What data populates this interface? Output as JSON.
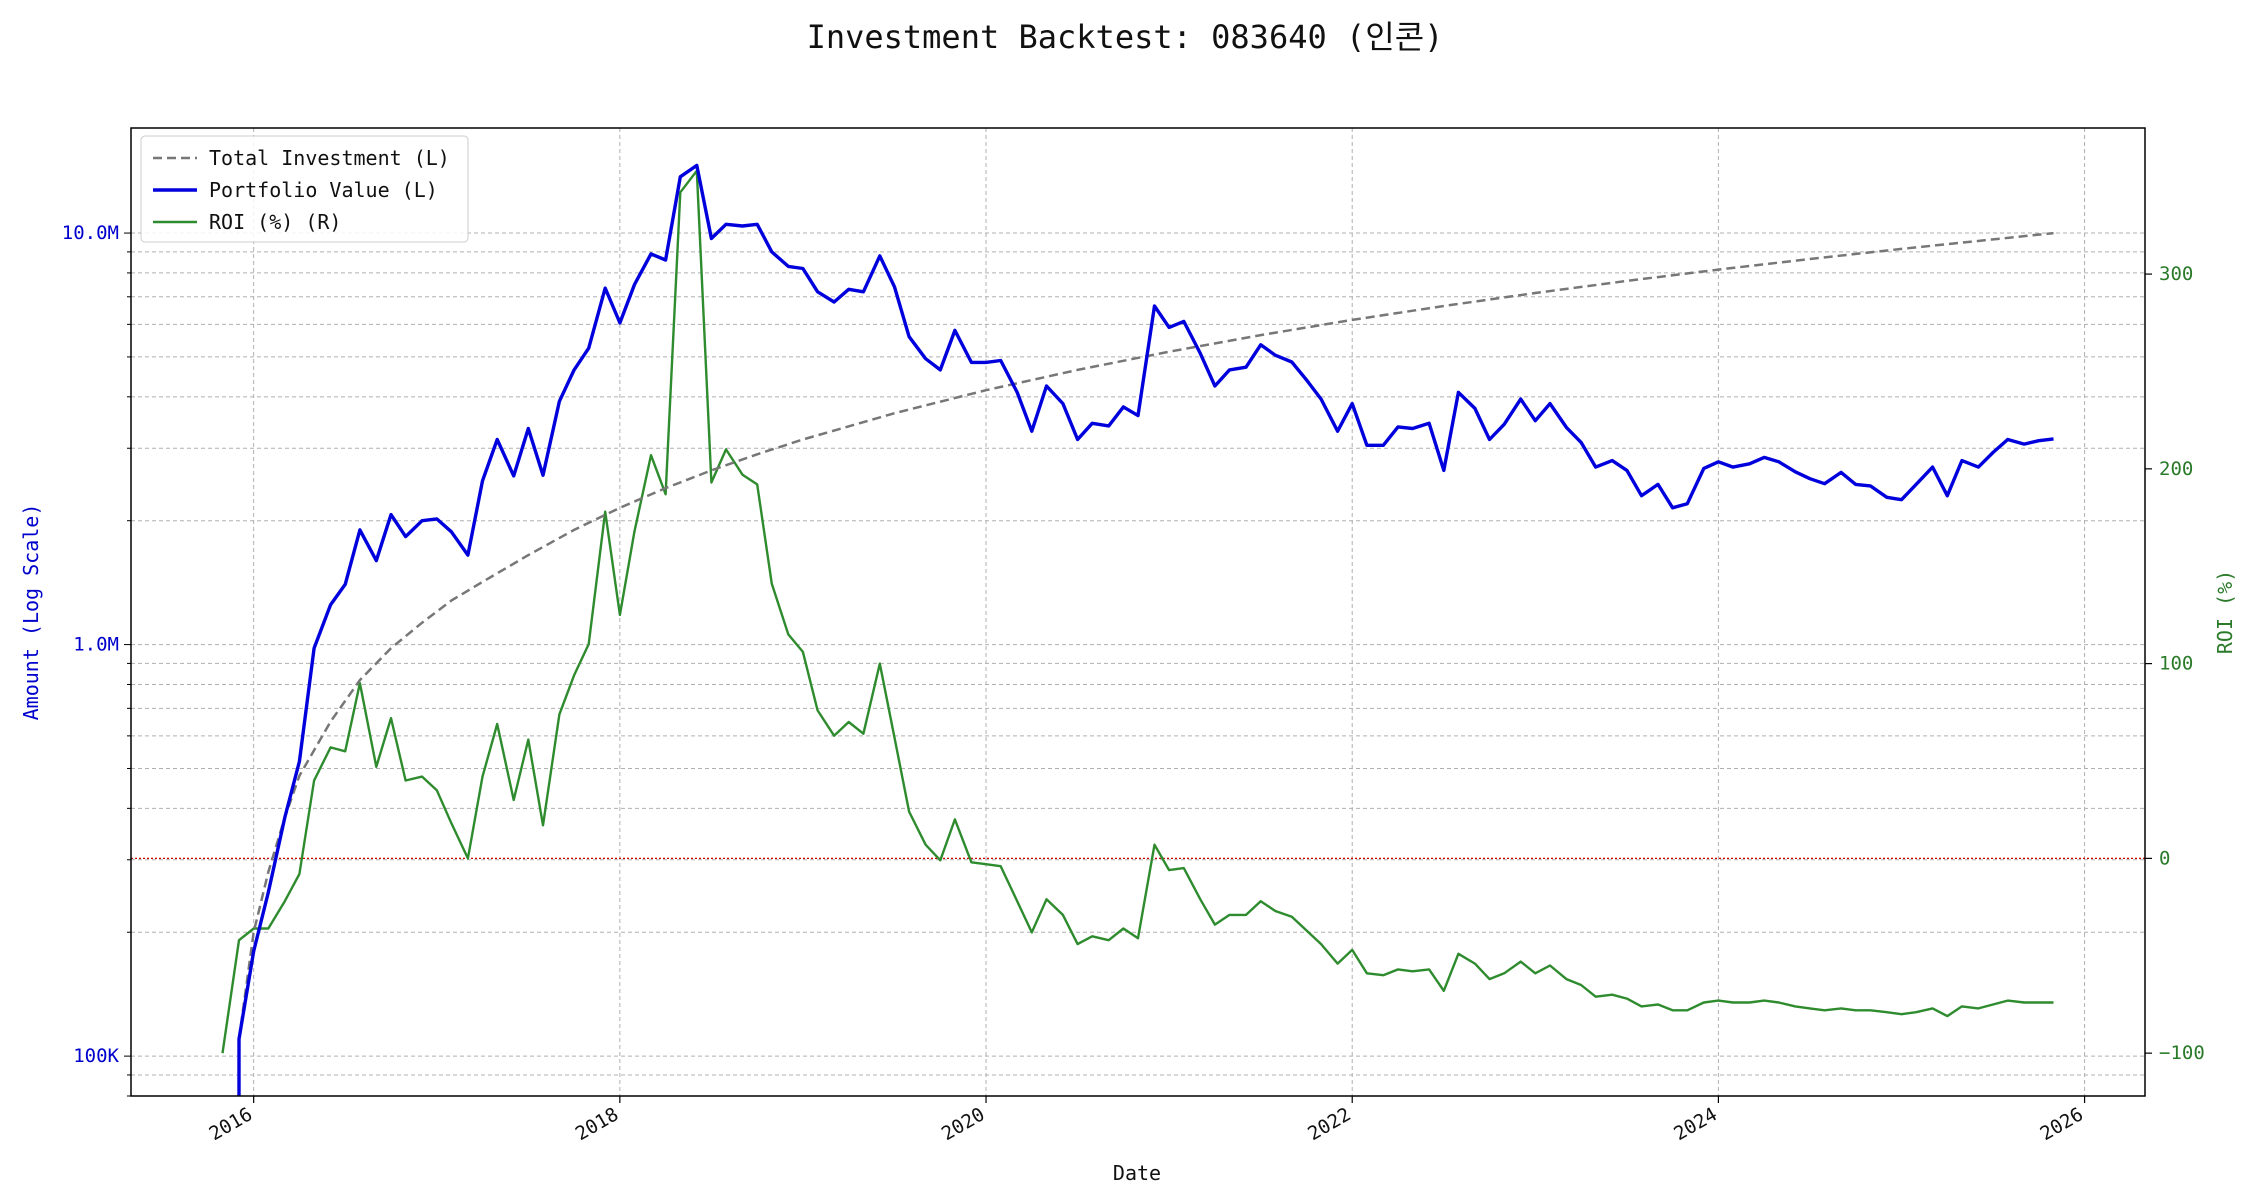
{
  "colors": {
    "portfolio": "#0000dd",
    "roi": "#2e8b2e",
    "investment": "#777777",
    "zero_line": "#cc0000",
    "left_axis_text": "#0000cc",
    "right_axis_text": "#2a7a2a",
    "grid": "#b0b0b0"
  },
  "chart_data": {
    "type": "line",
    "title": "Investment Backtest: 083640 (인콘)",
    "xlabel": "Date",
    "ylabel_left": "Amount (Log Scale)",
    "ylabel_right": "ROI (%)",
    "y_left_scale": "log",
    "y_left_range": [
      80000,
      18000000
    ],
    "y_right_range": [
      -122,
      375
    ],
    "x_range": [
      2015.33,
      2026.33
    ],
    "grid": true,
    "legend_position": "top-left",
    "x_ticks": [
      {
        "x": 2016,
        "label": "2016"
      },
      {
        "x": 2018,
        "label": "2018"
      },
      {
        "x": 2020,
        "label": "2020"
      },
      {
        "x": 2022,
        "label": "2022"
      },
      {
        "x": 2024,
        "label": "2024"
      },
      {
        "x": 2026,
        "label": "2026"
      }
    ],
    "y_left_ticks": [
      {
        "value": 100000,
        "label": "100K"
      },
      {
        "value": 1000000,
        "label": "1.0M"
      },
      {
        "value": 10000000,
        "label": "10.0M"
      }
    ],
    "y_right_ticks": [
      {
        "value": -100,
        "label": "−100"
      },
      {
        "value": 0,
        "label": "0"
      },
      {
        "value": 100,
        "label": "100"
      },
      {
        "value": 200,
        "label": "200"
      },
      {
        "value": 300,
        "label": "300"
      }
    ],
    "legend": [
      {
        "label": "Total Investment (L)",
        "style": "dashed",
        "series": "investment"
      },
      {
        "label": "Portfolio Value (L)",
        "style": "solid-thick",
        "series": "portfolio"
      },
      {
        "label": "ROI (%) (R)",
        "style": "solid",
        "series": "roi"
      }
    ],
    "series": [
      {
        "name": "ROI (%) (R)",
        "key": "roi",
        "axis": "right",
        "points": [
          [
            2015.83,
            -100
          ],
          [
            2015.92,
            -42
          ],
          [
            2016.0,
            -36
          ],
          [
            2016.08,
            -36
          ],
          [
            2016.17,
            -22
          ],
          [
            2016.25,
            -8
          ],
          [
            2016.33,
            40
          ],
          [
            2016.42,
            57
          ],
          [
            2016.5,
            55
          ],
          [
            2016.58,
            90
          ],
          [
            2016.67,
            47
          ],
          [
            2016.75,
            72
          ],
          [
            2016.83,
            40
          ],
          [
            2016.92,
            42
          ],
          [
            2017.0,
            35
          ],
          [
            2017.08,
            18
          ],
          [
            2017.17,
            0
          ],
          [
            2017.25,
            42
          ],
          [
            2017.33,
            69
          ],
          [
            2017.42,
            30
          ],
          [
            2017.5,
            61
          ],
          [
            2017.58,
            17
          ],
          [
            2017.67,
            74
          ],
          [
            2017.75,
            94
          ],
          [
            2017.83,
            110
          ],
          [
            2017.92,
            178
          ],
          [
            2018.0,
            125
          ],
          [
            2018.08,
            168
          ],
          [
            2018.17,
            207
          ],
          [
            2018.25,
            187
          ],
          [
            2018.33,
            342
          ],
          [
            2018.42,
            353
          ],
          [
            2018.5,
            193
          ],
          [
            2018.58,
            210
          ],
          [
            2018.67,
            197
          ],
          [
            2018.75,
            192
          ],
          [
            2018.83,
            141
          ],
          [
            2018.92,
            115
          ],
          [
            2019.0,
            106
          ],
          [
            2019.08,
            76
          ],
          [
            2019.17,
            63
          ],
          [
            2019.25,
            70
          ],
          [
            2019.33,
            64
          ],
          [
            2019.42,
            100
          ],
          [
            2019.5,
            62
          ],
          [
            2019.58,
            24
          ],
          [
            2019.67,
            7
          ],
          [
            2019.75,
            -1
          ],
          [
            2019.83,
            20
          ],
          [
            2019.92,
            -2
          ],
          [
            2020.0,
            -3
          ],
          [
            2020.08,
            -4
          ],
          [
            2020.17,
            -22
          ],
          [
            2020.25,
            -38
          ],
          [
            2020.33,
            -21
          ],
          [
            2020.42,
            -29
          ],
          [
            2020.5,
            -44
          ],
          [
            2020.58,
            -40
          ],
          [
            2020.67,
            -42
          ],
          [
            2020.75,
            -36
          ],
          [
            2020.83,
            -41
          ],
          [
            2020.92,
            7
          ],
          [
            2021.0,
            -6
          ],
          [
            2021.08,
            -5
          ],
          [
            2021.17,
            -21
          ],
          [
            2021.25,
            -34
          ],
          [
            2021.33,
            -29
          ],
          [
            2021.42,
            -29
          ],
          [
            2021.5,
            -22
          ],
          [
            2021.58,
            -27
          ],
          [
            2021.67,
            -30
          ],
          [
            2021.75,
            -37
          ],
          [
            2021.83,
            -44
          ],
          [
            2021.92,
            -54
          ],
          [
            2022.0,
            -47
          ],
          [
            2022.08,
            -59
          ],
          [
            2022.17,
            -60
          ],
          [
            2022.25,
            -57
          ],
          [
            2022.33,
            -58
          ],
          [
            2022.42,
            -57
          ],
          [
            2022.5,
            -68
          ],
          [
            2022.58,
            -49
          ],
          [
            2022.67,
            -54
          ],
          [
            2022.75,
            -62
          ],
          [
            2022.83,
            -59
          ],
          [
            2022.92,
            -53
          ],
          [
            2023.0,
            -59
          ],
          [
            2023.08,
            -55
          ],
          [
            2023.17,
            -62
          ],
          [
            2023.25,
            -65
          ],
          [
            2023.33,
            -71
          ],
          [
            2023.42,
            -70
          ],
          [
            2023.5,
            -72
          ],
          [
            2023.58,
            -76
          ],
          [
            2023.67,
            -75
          ],
          [
            2023.75,
            -78
          ],
          [
            2023.83,
            -78
          ],
          [
            2023.92,
            -74
          ],
          [
            2024.0,
            -73
          ],
          [
            2024.08,
            -74
          ],
          [
            2024.17,
            -74
          ],
          [
            2024.25,
            -73
          ],
          [
            2024.33,
            -74
          ],
          [
            2024.42,
            -76
          ],
          [
            2024.5,
            -77
          ],
          [
            2024.58,
            -78
          ],
          [
            2024.67,
            -77
          ],
          [
            2024.75,
            -78
          ],
          [
            2024.83,
            -78
          ],
          [
            2024.92,
            -79
          ],
          [
            2025.0,
            -80
          ],
          [
            2025.08,
            -79
          ],
          [
            2025.17,
            -77
          ],
          [
            2025.25,
            -81
          ],
          [
            2025.33,
            -76
          ],
          [
            2025.42,
            -77
          ],
          [
            2025.5,
            -75
          ],
          [
            2025.58,
            -73
          ],
          [
            2025.67,
            -74
          ],
          [
            2025.75,
            -74
          ],
          [
            2025.83,
            -74
          ]
        ]
      },
      {
        "name": "Total Investment (L)",
        "key": "investment",
        "axis": "left",
        "points": [
          [
            2015.92,
            110000
          ],
          [
            2016.0,
            200000
          ],
          [
            2016.08,
            280000
          ],
          [
            2016.17,
            380000
          ],
          [
            2016.25,
            480000
          ],
          [
            2016.42,
            650000
          ],
          [
            2016.58,
            820000
          ],
          [
            2016.75,
            980000
          ],
          [
            2016.92,
            1130000
          ],
          [
            2017.08,
            1280000
          ],
          [
            2017.25,
            1420000
          ],
          [
            2017.5,
            1650000
          ],
          [
            2017.75,
            1900000
          ],
          [
            2018.0,
            2150000
          ],
          [
            2018.25,
            2400000
          ],
          [
            2018.5,
            2650000
          ],
          [
            2018.75,
            2900000
          ],
          [
            2019.0,
            3150000
          ],
          [
            2019.5,
            3650000
          ],
          [
            2020.0,
            4150000
          ],
          [
            2020.5,
            4650000
          ],
          [
            2021.0,
            5150000
          ],
          [
            2021.5,
            5650000
          ],
          [
            2022.0,
            6150000
          ],
          [
            2022.5,
            6650000
          ],
          [
            2023.0,
            7150000
          ],
          [
            2023.5,
            7650000
          ],
          [
            2024.0,
            8150000
          ],
          [
            2024.5,
            8650000
          ],
          [
            2025.0,
            9150000
          ],
          [
            2025.5,
            9650000
          ],
          [
            2025.83,
            10000000
          ]
        ]
      },
      {
        "name": "Portfolio Value (L)",
        "key": "portfolio",
        "axis": "left",
        "points": [
          [
            2015.92,
            80000
          ],
          [
            2015.92,
            110000
          ],
          [
            2016.0,
            180000
          ],
          [
            2016.08,
            250000
          ],
          [
            2016.17,
            380000
          ],
          [
            2016.25,
            520000
          ],
          [
            2016.33,
            980000
          ],
          [
            2016.42,
            1250000
          ],
          [
            2016.5,
            1400000
          ],
          [
            2016.58,
            1900000
          ],
          [
            2016.67,
            1600000
          ],
          [
            2016.75,
            2070000
          ],
          [
            2016.83,
            1830000
          ],
          [
            2016.92,
            2000000
          ],
          [
            2017.0,
            2020000
          ],
          [
            2017.08,
            1880000
          ],
          [
            2017.17,
            1650000
          ],
          [
            2017.25,
            2500000
          ],
          [
            2017.33,
            3150000
          ],
          [
            2017.42,
            2570000
          ],
          [
            2017.5,
            3350000
          ],
          [
            2017.58,
            2580000
          ],
          [
            2017.67,
            3900000
          ],
          [
            2017.75,
            4650000
          ],
          [
            2017.83,
            5250000
          ],
          [
            2017.92,
            7350000
          ],
          [
            2018.0,
            6050000
          ],
          [
            2018.08,
            7500000
          ],
          [
            2018.17,
            8900000
          ],
          [
            2018.25,
            8600000
          ],
          [
            2018.33,
            13700000
          ],
          [
            2018.42,
            14600000
          ],
          [
            2018.5,
            9700000
          ],
          [
            2018.58,
            10500000
          ],
          [
            2018.67,
            10400000
          ],
          [
            2018.75,
            10500000
          ],
          [
            2018.83,
            9000000
          ],
          [
            2018.92,
            8300000
          ],
          [
            2019.0,
            8200000
          ],
          [
            2019.08,
            7200000
          ],
          [
            2019.17,
            6800000
          ],
          [
            2019.25,
            7300000
          ],
          [
            2019.33,
            7200000
          ],
          [
            2019.42,
            8800000
          ],
          [
            2019.5,
            7400000
          ],
          [
            2019.58,
            5600000
          ],
          [
            2019.67,
            4950000
          ],
          [
            2019.75,
            4650000
          ],
          [
            2019.83,
            5800000
          ],
          [
            2019.92,
            4850000
          ],
          [
            2020.0,
            4850000
          ],
          [
            2020.08,
            4900000
          ],
          [
            2020.17,
            4100000
          ],
          [
            2020.25,
            3300000
          ],
          [
            2020.33,
            4250000
          ],
          [
            2020.42,
            3850000
          ],
          [
            2020.5,
            3150000
          ],
          [
            2020.58,
            3450000
          ],
          [
            2020.67,
            3400000
          ],
          [
            2020.75,
            3780000
          ],
          [
            2020.83,
            3600000
          ],
          [
            2020.92,
            6650000
          ],
          [
            2021.0,
            5900000
          ],
          [
            2021.08,
            6100000
          ],
          [
            2021.17,
            5100000
          ],
          [
            2021.25,
            4250000
          ],
          [
            2021.33,
            4650000
          ],
          [
            2021.42,
            4720000
          ],
          [
            2021.5,
            5350000
          ],
          [
            2021.58,
            5050000
          ],
          [
            2021.67,
            4860000
          ],
          [
            2021.75,
            4400000
          ],
          [
            2021.83,
            3950000
          ],
          [
            2021.92,
            3300000
          ],
          [
            2022.0,
            3850000
          ],
          [
            2022.08,
            3050000
          ],
          [
            2022.17,
            3050000
          ],
          [
            2022.25,
            3380000
          ],
          [
            2022.33,
            3350000
          ],
          [
            2022.42,
            3450000
          ],
          [
            2022.5,
            2650000
          ],
          [
            2022.58,
            4100000
          ],
          [
            2022.67,
            3750000
          ],
          [
            2022.75,
            3150000
          ],
          [
            2022.83,
            3430000
          ],
          [
            2022.92,
            3950000
          ],
          [
            2023.0,
            3500000
          ],
          [
            2023.08,
            3850000
          ],
          [
            2023.17,
            3370000
          ],
          [
            2023.25,
            3100000
          ],
          [
            2023.33,
            2700000
          ],
          [
            2023.42,
            2800000
          ],
          [
            2023.5,
            2650000
          ],
          [
            2023.58,
            2300000
          ],
          [
            2023.67,
            2450000
          ],
          [
            2023.75,
            2150000
          ],
          [
            2023.83,
            2200000
          ],
          [
            2023.92,
            2680000
          ],
          [
            2024.0,
            2780000
          ],
          [
            2024.08,
            2700000
          ],
          [
            2024.17,
            2750000
          ],
          [
            2024.25,
            2850000
          ],
          [
            2024.33,
            2780000
          ],
          [
            2024.42,
            2630000
          ],
          [
            2024.5,
            2530000
          ],
          [
            2024.58,
            2460000
          ],
          [
            2024.67,
            2620000
          ],
          [
            2024.75,
            2450000
          ],
          [
            2024.83,
            2430000
          ],
          [
            2024.92,
            2280000
          ],
          [
            2025.0,
            2250000
          ],
          [
            2025.08,
            2450000
          ],
          [
            2025.17,
            2700000
          ],
          [
            2025.25,
            2300000
          ],
          [
            2025.33,
            2800000
          ],
          [
            2025.42,
            2700000
          ],
          [
            2025.5,
            2930000
          ],
          [
            2025.58,
            3150000
          ],
          [
            2025.67,
            3070000
          ],
          [
            2025.75,
            3130000
          ],
          [
            2025.83,
            3160000
          ]
        ]
      }
    ]
  }
}
